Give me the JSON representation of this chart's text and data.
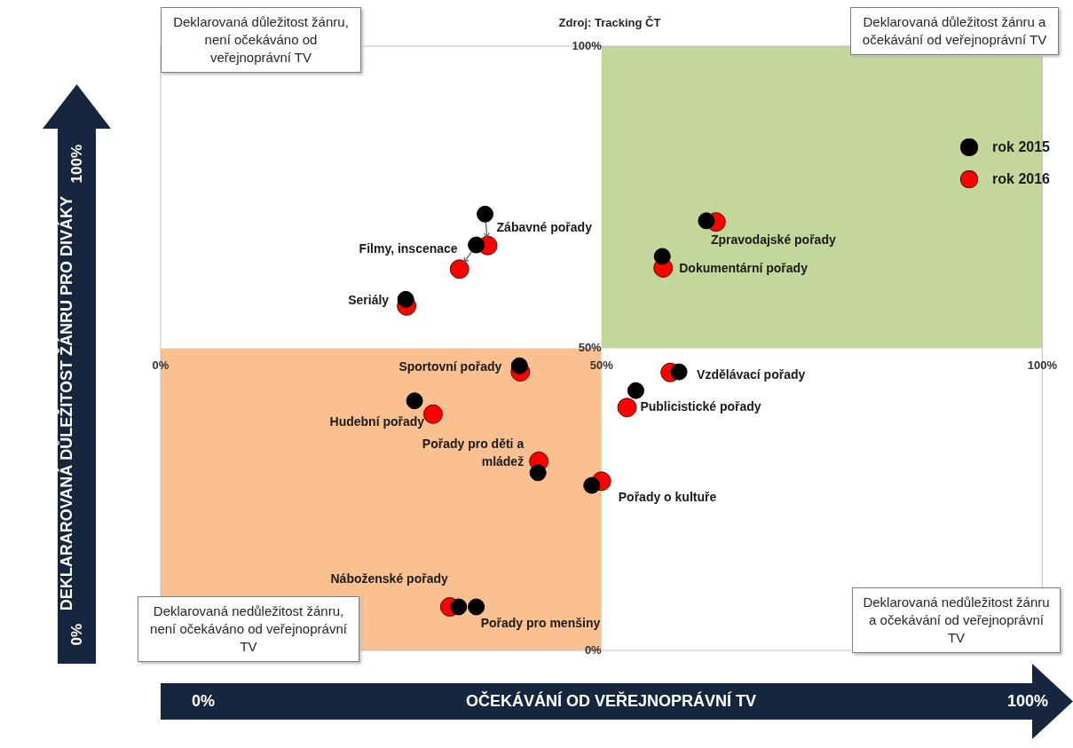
{
  "chart_data": {
    "type": "scatter",
    "xlabel": "OČEKÁVÁNÍ OD VEŘEJNOPRÁVNÍ TV",
    "ylabel": "DEKLARAROVANÁ DŮLEŽITOST ŽÁNRU PRO DIVÁKY",
    "xlim": [
      0,
      100
    ],
    "ylim": [
      0,
      100
    ],
    "xticks": [
      {
        "value": 0,
        "label": "0%"
      },
      {
        "value": 50,
        "label": "50%"
      },
      {
        "value": 100,
        "label": "100%"
      }
    ],
    "yticks": [
      {
        "value": 0,
        "label": "0%"
      },
      {
        "value": 50,
        "label": "50%"
      },
      {
        "value": 100,
        "label": "100%"
      }
    ],
    "legend": "top right",
    "marker": "circle",
    "series": [
      {
        "name": "rok 2015",
        "color": "#000000",
        "x": [
          36.8,
          35.8,
          27.8,
          61.9,
          56.9,
          40.7,
          58.8,
          53.9,
          28.8,
          42.8,
          48.9,
          33.8,
          35.8
        ],
        "values": [
          72.2,
          67.1,
          58.1,
          71.1,
          65.2,
          47.1,
          46.1,
          43.0,
          41.3,
          29.4,
          27.3,
          7.2,
          7.2
        ]
      },
      {
        "name": "rok 2016",
        "color": "#ff0000",
        "x": [
          37.1,
          33.9,
          27.9,
          63.0,
          57.0,
          40.8,
          57.8,
          52.9,
          30.9,
          42.9,
          50.0,
          32.8,
          null
        ],
        "values": [
          67.0,
          63.1,
          57.0,
          70.9,
          63.3,
          46.1,
          46.0,
          40.2,
          39.1,
          31.3,
          28.0,
          7.2,
          null
        ]
      }
    ],
    "bands": [
      {
        "axis": "x",
        "from": 50,
        "to": 100,
        "color": "#c4d79b"
      },
      {
        "axis": "x",
        "from": 0,
        "to": 50,
        "color": "#fac090"
      }
    ],
    "annotations": [
      "Zdroj: Tracking ČT",
      "Deklarovaná důležitost žánru, není očekáváno od veřejnoprávní TV",
      "Deklarovaná důležitost žánru a očekávání od veřejnoprávní TV",
      "Deklarovaná nedůležitost žánru, není očekáváno od veřejnoprávní TV",
      "Deklarovaná nedůležitost žánru a očekávání od veřejnoprávní TV",
      {
        "text": "Zábavné pořady",
        "x": 36.8,
        "y": 72.2
      },
      {
        "text": "Filmy, inscenace",
        "x": 35.8,
        "y": 67.1
      },
      {
        "text": "Seriály",
        "x": 27.8,
        "y": 58.1
      },
      {
        "text": "Zpravodajské pořady",
        "x": 61.9,
        "y": 71.1
      },
      {
        "text": "Dokumentární pořady",
        "x": 56.9,
        "y": 65.2
      },
      {
        "text": "Sportovní pořady",
        "x": 40.7,
        "y": 47.1
      },
      {
        "text": "Vzdělávací pořady",
        "x": 58.8,
        "y": 46.1
      },
      {
        "text": "Publicistické pořady",
        "x": 53.9,
        "y": 43.0
      },
      {
        "text": "Hudební pořady",
        "x": 28.8,
        "y": 41.3
      },
      {
        "text": "Pořady pro děti a mládež",
        "x": 42.8,
        "y": 29.4
      },
      {
        "text": "Pořady o kultuře",
        "x": 48.9,
        "y": 27.3
      },
      {
        "text": "Náboženské pořady",
        "x": 33.8,
        "y": 7.2
      },
      {
        "text": "Pořady pro menšiny",
        "x": 35.8,
        "y": 7.2
      }
    ]
  }
}
